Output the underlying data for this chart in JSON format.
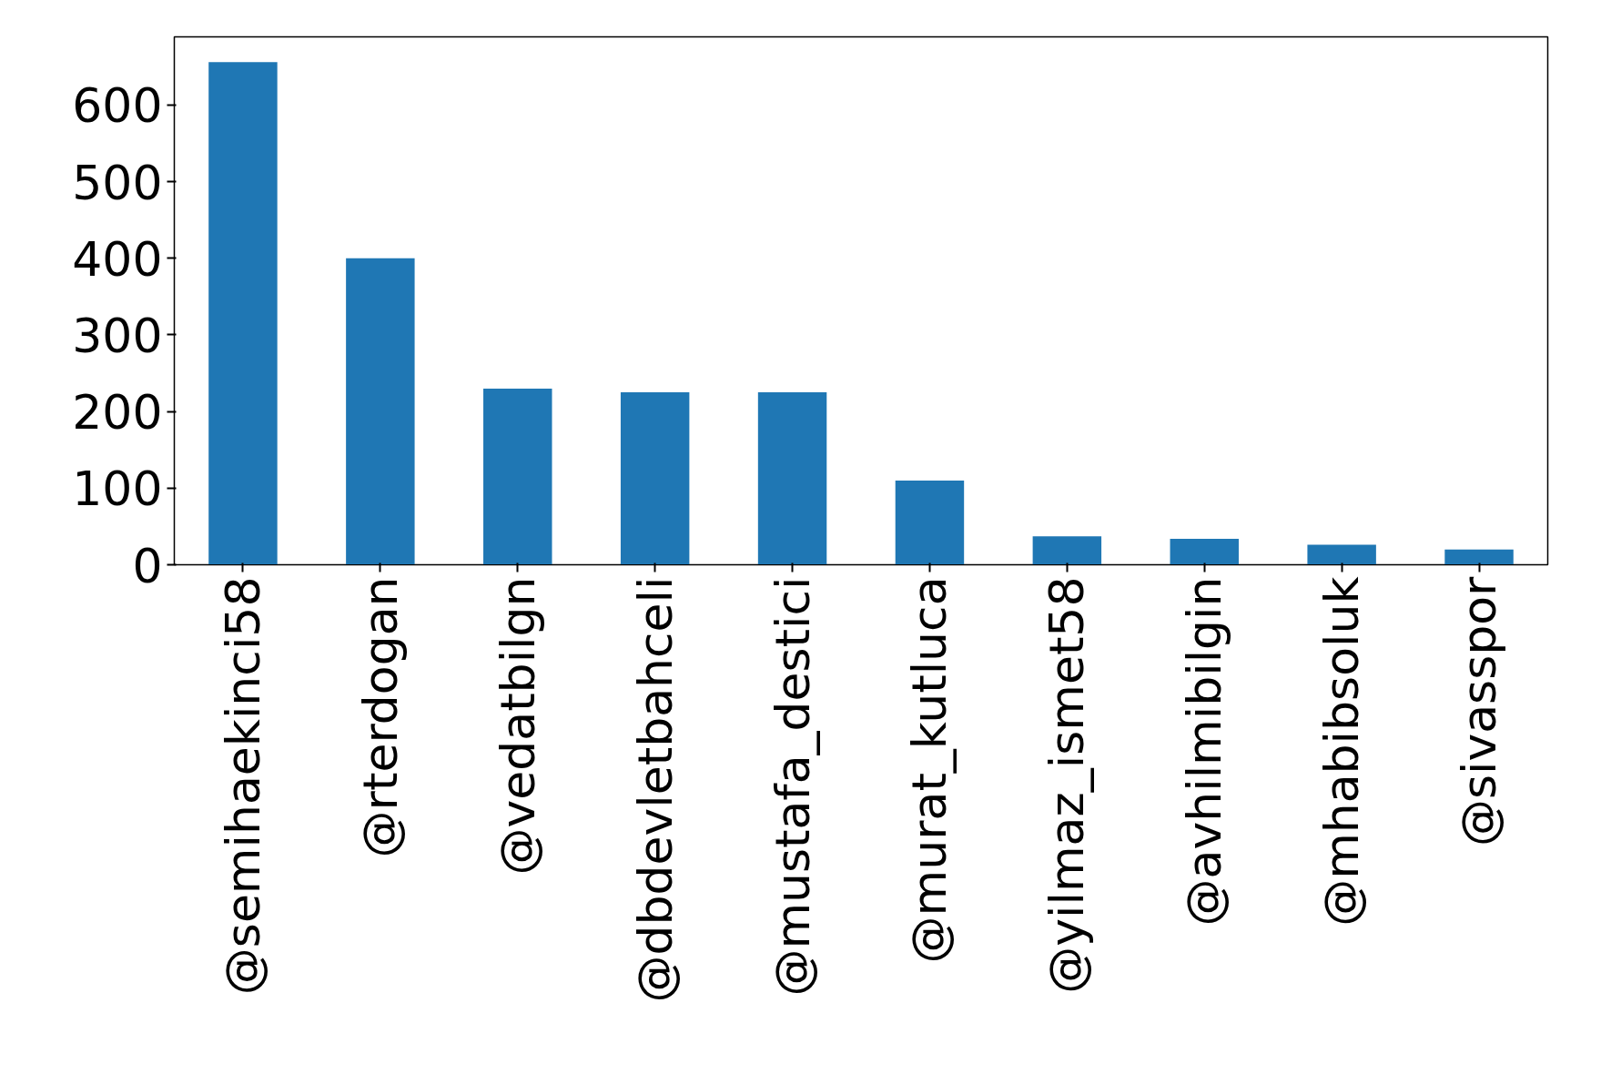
{
  "chart_data": {
    "type": "bar",
    "categories": [
      "@semihaekinci58",
      "@rterdogan",
      "@vedatbilgn",
      "@dbdevletbahceli",
      "@mustafa_destici",
      "@murat_kutluca",
      "@yilmaz_ismet58",
      "@avhilmibilgin",
      "@mhabibsoluk",
      "@sivasspor"
    ],
    "values": [
      656,
      400,
      230,
      225,
      225,
      110,
      37,
      34,
      26,
      20
    ],
    "color": "#1f77b4",
    "ylim": [
      0,
      689
    ],
    "yticks": [
      0,
      100,
      200,
      300,
      400,
      500,
      600
    ],
    "grid": false
  }
}
